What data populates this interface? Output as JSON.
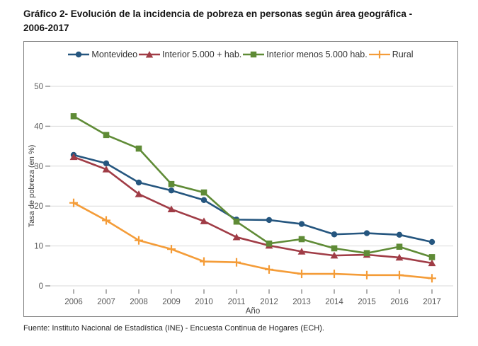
{
  "header": {
    "title_line1": "Gráfico 2- Evolución de la incidencia de pobreza en personas según área geográfica -",
    "title_line2": "2006-2017"
  },
  "footer": {
    "source": "Fuente: Instituto Nacional de Estadística (INE) - Encuesta Continua de Hogares (ECH)."
  },
  "colors": {
    "grid": "#d9d9d9",
    "tick": "#8c8c8c",
    "tick_label": "#595959",
    "axis_label": "#404040",
    "panel_border": "#7d7d7d"
  },
  "chart_data": {
    "type": "line",
    "title": "Gráfico 2- Evolución de la incidencia de pobreza en personas según área geográfica - 2006-2017",
    "xlabel": "Año",
    "ylabel": "Tasa de pobreza (en %)",
    "ylim": [
      0,
      50
    ],
    "yticks": [
      0,
      10,
      20,
      30,
      40,
      50
    ],
    "grid": true,
    "legend_position": "top-center",
    "categories": [
      "2006",
      "2007",
      "2008",
      "2009",
      "2010",
      "2011",
      "2012",
      "2013",
      "2014",
      "2015",
      "2016",
      "2017"
    ],
    "series": [
      {
        "name": "Montevideo",
        "marker": "circle",
        "color": "#25567f",
        "values": [
          32.8,
          30.7,
          25.9,
          23.9,
          21.5,
          16.6,
          16.5,
          15.5,
          12.9,
          13.2,
          12.8,
          11.0
        ]
      },
      {
        "name": "Interior 5.000 + hab.",
        "marker": "triangle",
        "color": "#a03c46",
        "values": [
          32.3,
          29.2,
          23.0,
          19.2,
          16.2,
          12.2,
          10.1,
          8.6,
          7.6,
          7.8,
          7.1,
          5.7
        ]
      },
      {
        "name": "Interior menos 5.000 hab.",
        "marker": "square",
        "color": "#5f8b36",
        "values": [
          42.5,
          37.8,
          34.4,
          25.5,
          23.4,
          16.1,
          10.6,
          11.7,
          9.4,
          8.2,
          9.8,
          7.2
        ]
      },
      {
        "name": "Rural",
        "marker": "plus",
        "color": "#f49c38",
        "values": [
          20.8,
          16.4,
          11.4,
          9.2,
          6.1,
          5.9,
          4.1,
          3.0,
          3.0,
          2.7,
          2.7,
          1.9
        ]
      }
    ]
  }
}
